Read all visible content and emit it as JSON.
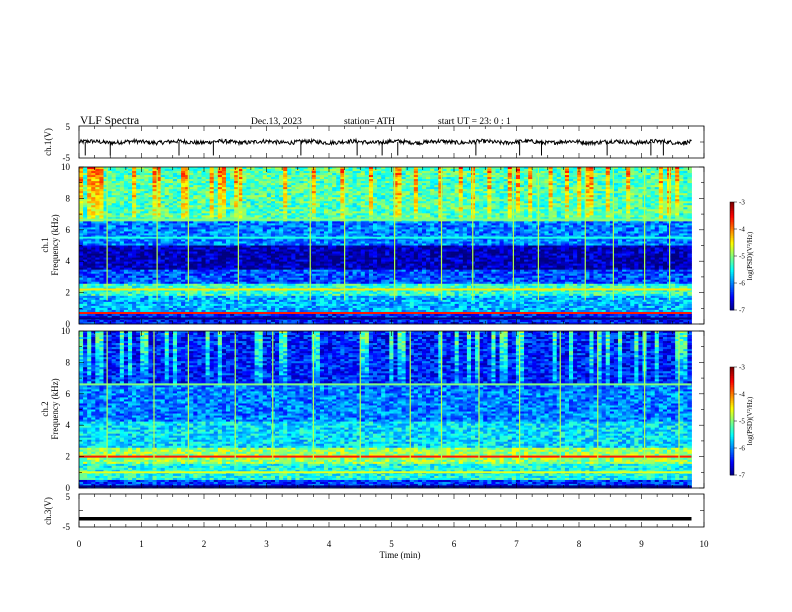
{
  "header": {
    "title": "VLF  Spectra",
    "date": "Dec.13, 2023",
    "station": "station= ATH",
    "start": "start  UT  =    23: 0   : 1"
  },
  "chart_data": [
    {
      "type": "line",
      "panel": "ch1-waveform",
      "ylabel": "ch.1(V)",
      "ylim": [
        -5,
        5
      ],
      "yticks": [
        "5",
        "-5"
      ],
      "xlim": [
        0,
        10
      ],
      "x_extent": [
        0,
        9.8
      ],
      "trace_level": 0,
      "trace_fluctuation": 0.8,
      "spikes_min": [
        0.1,
        0.5,
        1.6,
        2.15,
        3.55,
        4.45,
        4.85,
        5.1,
        6.35,
        7.05,
        7.4,
        8.45,
        9.15,
        9.35
      ]
    },
    {
      "type": "heatmap",
      "panel": "ch1-spectrogram",
      "ylabel": "ch.1",
      "ylabel2": "Frequency  (kHz)",
      "ylim": [
        0,
        10
      ],
      "yticks": [
        "10",
        "8",
        "6",
        "4",
        "2",
        "0"
      ],
      "xlim": [
        0,
        10
      ],
      "x_extent": [
        0,
        9.8
      ],
      "colorbar": {
        "label": "log(PSD)(V²/Hz)",
        "range": [
          -7,
          -3
        ],
        "ticks": [
          "-3",
          "-4",
          "-5",
          "-6",
          "-7"
        ]
      },
      "bands": [
        {
          "from_khz": 6.5,
          "to_khz": 10,
          "level": -5.2,
          "impulsive": true
        },
        {
          "from_khz": 5.0,
          "to_khz": 6.5,
          "level": -6.0
        },
        {
          "from_khz": 3.4,
          "to_khz": 5.0,
          "level": -6.8
        },
        {
          "from_khz": 2.6,
          "to_khz": 3.4,
          "level": -6.2
        },
        {
          "from_khz": 1.8,
          "to_khz": 2.6,
          "level": -5.3
        },
        {
          "from_khz": 0.8,
          "to_khz": 1.8,
          "level": -5.8
        },
        {
          "from_khz": 0.0,
          "to_khz": 0.8,
          "level": -6.4
        }
      ],
      "lines_khz": [
        {
          "khz": 6.65,
          "level": -5.0
        },
        {
          "khz": 5.5,
          "level": -5.4
        },
        {
          "khz": 2.2,
          "level": -4.4
        },
        {
          "khz": 0.7,
          "level": -3.6
        },
        {
          "khz": 0.35,
          "level": -7.0
        }
      ],
      "impulses_min": [
        0.45,
        1.25,
        1.75,
        2.55,
        3.7,
        4.25,
        5.05,
        5.8,
        6.3,
        6.95,
        7.35,
        8.1,
        8.55,
        9.05,
        9.45
      ]
    },
    {
      "type": "heatmap",
      "panel": "ch2-spectrogram",
      "ylabel": "ch.2",
      "ylabel2": "Frequency  (kHz)",
      "ylim": [
        0,
        10
      ],
      "yticks": [
        "10",
        "8",
        "6",
        "4",
        "2",
        "0"
      ],
      "xlim": [
        0,
        10
      ],
      "x_extent": [
        0,
        9.8
      ],
      "colorbar": {
        "label": "log(PSD)(V²/Hz)",
        "range": [
          -7,
          -3
        ],
        "ticks": [
          "-3",
          "-4",
          "-5",
          "-6",
          "-7"
        ]
      },
      "bands": [
        {
          "from_khz": 6.5,
          "to_khz": 10,
          "level": -6.4,
          "impulsive": true
        },
        {
          "from_khz": 4.2,
          "to_khz": 6.5,
          "level": -6.0
        },
        {
          "from_khz": 2.6,
          "to_khz": 4.2,
          "level": -5.6
        },
        {
          "from_khz": 1.5,
          "to_khz": 2.6,
          "level": -4.9
        },
        {
          "from_khz": 0.5,
          "to_khz": 1.5,
          "level": -5.4
        },
        {
          "from_khz": 0.0,
          "to_khz": 0.5,
          "level": -6.3
        }
      ],
      "lines_khz": [
        {
          "khz": 6.6,
          "level": -5.0
        },
        {
          "khz": 2.0,
          "level": -3.6
        },
        {
          "khz": 1.0,
          "level": -4.6
        },
        {
          "khz": 0.1,
          "level": -7.0
        }
      ],
      "impulses_min": [
        0.45,
        1.2,
        1.75,
        2.5,
        3.1,
        3.75,
        4.5,
        5.3,
        5.8,
        6.4,
        7.05,
        7.7,
        8.3,
        9.05,
        9.6
      ]
    },
    {
      "type": "line",
      "panel": "ch3-waveform",
      "ylabel": "ch.3(V)",
      "ylim": [
        -5,
        5
      ],
      "yticks": [
        "5",
        "-5"
      ],
      "xlim": [
        0,
        10
      ],
      "x_extent": [
        0,
        9.8
      ],
      "trace_level": -2.5,
      "xlabel": "Time  (min)",
      "xticks": [
        "0",
        "1",
        "2",
        "3",
        "4",
        "5",
        "6",
        "7",
        "8",
        "9",
        "10"
      ]
    }
  ]
}
